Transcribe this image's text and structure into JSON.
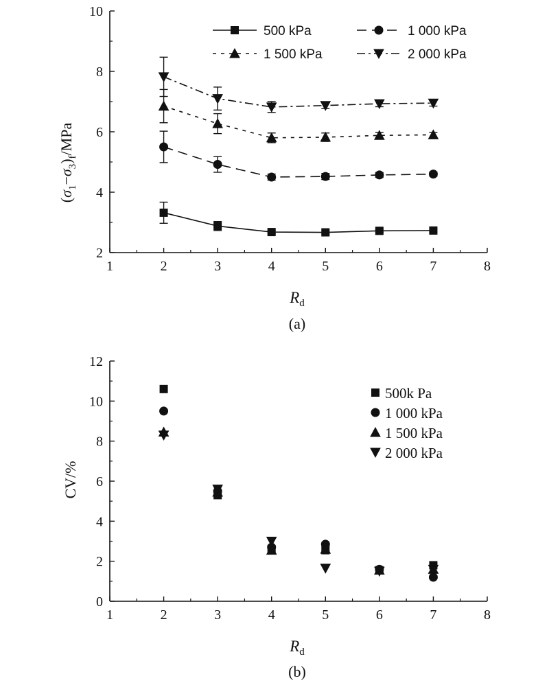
{
  "chart_data": [
    {
      "type": "line",
      "panel_label": "(a)",
      "ylabel": "(σ1−σ3)f/MPa",
      "ylabel_parts": {
        "open": "(",
        "s1": "σ",
        "sub1": "1",
        "minus": "−",
        "s3": "σ",
        "sub3": "3",
        "close": ")",
        "subf": "f",
        "unit": "/MPa"
      },
      "xlabel": "Rd",
      "xlabel_parts": {
        "main": "R",
        "sub": "d"
      },
      "xlim": [
        1,
        8
      ],
      "ylim": [
        2,
        10
      ],
      "xticks": [
        1,
        2,
        3,
        4,
        5,
        6,
        7,
        8
      ],
      "yticks": [
        2,
        4,
        6,
        8,
        10
      ],
      "legend_position": "top-right",
      "series": [
        {
          "name": "500 kPa",
          "marker": "square",
          "line": "solid",
          "x": [
            2,
            3,
            4,
            5,
            6,
            7
          ],
          "y": [
            3.32,
            2.88,
            2.68,
            2.67,
            2.72,
            2.73
          ],
          "err": [
            0.35,
            0.15,
            0.05,
            0.05,
            0.05,
            0.05
          ]
        },
        {
          "name": "1 000 kPa",
          "marker": "circle",
          "line": "dashed",
          "x": [
            2,
            3,
            4,
            5,
            6,
            7
          ],
          "y": [
            5.5,
            4.92,
            4.5,
            4.52,
            4.57,
            4.6
          ],
          "err": [
            0.52,
            0.26,
            0.1,
            0.1,
            0.08,
            0.07
          ]
        },
        {
          "name": "1 500 kPa",
          "marker": "triangle-up",
          "line": "dotted",
          "x": [
            2,
            3,
            4,
            5,
            6,
            7
          ],
          "y": [
            6.85,
            6.27,
            5.8,
            5.82,
            5.88,
            5.9
          ],
          "err": [
            0.55,
            0.33,
            0.16,
            0.14,
            0.1,
            0.08
          ]
        },
        {
          "name": "2 000 kPa",
          "marker": "triangle-down",
          "line": "dashdot",
          "x": [
            2,
            3,
            4,
            5,
            6,
            7
          ],
          "y": [
            7.82,
            7.1,
            6.82,
            6.87,
            6.93,
            6.95
          ],
          "err": [
            0.65,
            0.38,
            0.18,
            0.1,
            0.1,
            0.1
          ]
        }
      ]
    },
    {
      "type": "scatter",
      "panel_label": "(b)",
      "ylabel": "CV/%",
      "xlabel": "Rd",
      "xlabel_parts": {
        "main": "R",
        "sub": "d"
      },
      "xlim": [
        1,
        8
      ],
      "ylim": [
        0,
        12
      ],
      "xticks": [
        1,
        2,
        3,
        4,
        5,
        6,
        7,
        8
      ],
      "yticks": [
        0,
        2,
        4,
        6,
        8,
        10,
        12
      ],
      "legend_position": "top-right",
      "series": [
        {
          "name": "500k Pa",
          "marker": "square",
          "x": [
            2,
            3,
            4,
            5,
            6,
            7
          ],
          "y": [
            10.6,
            5.3,
            2.6,
            2.55,
            1.55,
            1.8
          ]
        },
        {
          "name": "1 000 kPa",
          "marker": "circle",
          "x": [
            2,
            3,
            4,
            5,
            6,
            7
          ],
          "y": [
            9.5,
            5.5,
            2.7,
            2.85,
            1.6,
            1.2
          ]
        },
        {
          "name": "1 500 kPa",
          "marker": "triangle-up",
          "x": [
            2,
            3,
            4,
            5,
            6,
            7
          ],
          "y": [
            8.45,
            5.45,
            2.55,
            2.6,
            1.55,
            1.6
          ]
        },
        {
          "name": "2 000 kPa",
          "marker": "triangle-down",
          "x": [
            2,
            3,
            4,
            5,
            6,
            7
          ],
          "y": [
            8.3,
            5.6,
            3.0,
            1.65,
            1.5,
            1.6
          ]
        }
      ]
    }
  ]
}
